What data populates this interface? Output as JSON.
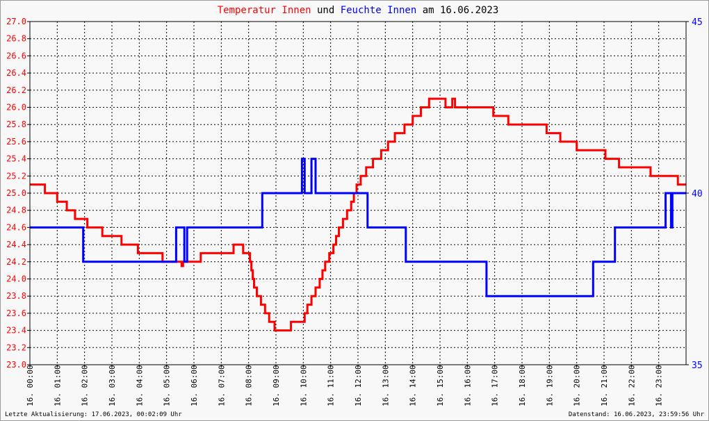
{
  "chart_data": {
    "type": "line",
    "title": {
      "parts": [
        {
          "text": "Temperatur Innen",
          "color": "#ff0000"
        },
        {
          "text": " und ",
          "color": "#000000"
        },
        {
          "text": "Feuchte Innen",
          "color": "#0000ff"
        },
        {
          "text": " am 16.06.2023",
          "color": "#000000"
        }
      ]
    },
    "x_domain": [
      0,
      24
    ],
    "x_ticks": [
      {
        "x": 0,
        "label": "16. 00:00"
      },
      {
        "x": 1,
        "label": "16. 01:00"
      },
      {
        "x": 2,
        "label": "16. 02:00"
      },
      {
        "x": 3,
        "label": "16. 03:00"
      },
      {
        "x": 4,
        "label": "16. 04:00"
      },
      {
        "x": 5,
        "label": "16. 05:00"
      },
      {
        "x": 6,
        "label": "16. 06:00"
      },
      {
        "x": 7,
        "label": "16. 07:00"
      },
      {
        "x": 8,
        "label": "16. 08:00"
      },
      {
        "x": 9,
        "label": "16. 09:00"
      },
      {
        "x": 10,
        "label": "16. 10:00"
      },
      {
        "x": 11,
        "label": "16. 11:00"
      },
      {
        "x": 12,
        "label": "16. 12:00"
      },
      {
        "x": 13,
        "label": "16. 13:00"
      },
      {
        "x": 14,
        "label": "16. 14:00"
      },
      {
        "x": 15,
        "label": "16. 15:00"
      },
      {
        "x": 16,
        "label": "16. 16:00"
      },
      {
        "x": 17,
        "label": "16. 17:00"
      },
      {
        "x": 18,
        "label": "16. 18:00"
      },
      {
        "x": 19,
        "label": "16. 19:00"
      },
      {
        "x": 20,
        "label": "16. 20:00"
      },
      {
        "x": 21,
        "label": "16. 21:00"
      },
      {
        "x": 22,
        "label": "16. 22:00"
      },
      {
        "x": 23,
        "label": "16. 23:00"
      }
    ],
    "y_left": {
      "range": [
        23.0,
        27.0
      ],
      "color": "#ff0000",
      "ticks": [
        "23.0",
        "23.2",
        "23.4",
        "23.6",
        "23.8",
        "24.0",
        "24.2",
        "24.4",
        "24.6",
        "24.8",
        "25.0",
        "25.2",
        "25.4",
        "25.6",
        "25.8",
        "26.0",
        "26.2",
        "26.4",
        "26.6",
        "26.8",
        "27.0"
      ]
    },
    "y_right": {
      "range": [
        35,
        45
      ],
      "color": "#0000ff",
      "ticks": [
        "35",
        "40",
        "45"
      ]
    },
    "grid": true,
    "series": [
      {
        "name": "Temperatur Innen",
        "axis": "left",
        "color": "#ff0000",
        "step": true,
        "points": [
          [
            0.0,
            25.1
          ],
          [
            0.5,
            25.1
          ],
          [
            0.55,
            25.0
          ],
          [
            0.95,
            25.0
          ],
          [
            1.0,
            24.9
          ],
          [
            1.3,
            24.9
          ],
          [
            1.35,
            24.8
          ],
          [
            1.6,
            24.8
          ],
          [
            1.65,
            24.7
          ],
          [
            2.05,
            24.7
          ],
          [
            2.1,
            24.6
          ],
          [
            2.6,
            24.6
          ],
          [
            2.65,
            24.5
          ],
          [
            3.3,
            24.5
          ],
          [
            3.35,
            24.4
          ],
          [
            3.9,
            24.4
          ],
          [
            3.95,
            24.3
          ],
          [
            4.8,
            24.3
          ],
          [
            4.85,
            24.2
          ],
          [
            5.5,
            24.2
          ],
          [
            5.55,
            24.15
          ],
          [
            5.6,
            24.2
          ],
          [
            6.2,
            24.2
          ],
          [
            6.25,
            24.3
          ],
          [
            7.4,
            24.3
          ],
          [
            7.45,
            24.4
          ],
          [
            7.75,
            24.4
          ],
          [
            7.8,
            24.3
          ],
          [
            8.0,
            24.3
          ],
          [
            8.05,
            24.2
          ],
          [
            8.1,
            24.1
          ],
          [
            8.15,
            24.0
          ],
          [
            8.2,
            23.9
          ],
          [
            8.3,
            23.8
          ],
          [
            8.45,
            23.7
          ],
          [
            8.6,
            23.6
          ],
          [
            8.75,
            23.5
          ],
          [
            8.95,
            23.4
          ],
          [
            9.5,
            23.4
          ],
          [
            9.55,
            23.5
          ],
          [
            10.0,
            23.5
          ],
          [
            10.05,
            23.6
          ],
          [
            10.15,
            23.7
          ],
          [
            10.3,
            23.8
          ],
          [
            10.45,
            23.9
          ],
          [
            10.6,
            24.0
          ],
          [
            10.7,
            24.1
          ],
          [
            10.8,
            24.2
          ],
          [
            10.95,
            24.3
          ],
          [
            11.1,
            24.4
          ],
          [
            11.2,
            24.5
          ],
          [
            11.3,
            24.6
          ],
          [
            11.45,
            24.7
          ],
          [
            11.6,
            24.8
          ],
          [
            11.75,
            24.9
          ],
          [
            11.85,
            25.0
          ],
          [
            11.95,
            25.1
          ],
          [
            12.1,
            25.2
          ],
          [
            12.3,
            25.3
          ],
          [
            12.55,
            25.4
          ],
          [
            12.85,
            25.5
          ],
          [
            13.1,
            25.6
          ],
          [
            13.35,
            25.7
          ],
          [
            13.7,
            25.8
          ],
          [
            14.0,
            25.9
          ],
          [
            14.3,
            26.0
          ],
          [
            14.6,
            26.1
          ],
          [
            15.1,
            26.1
          ],
          [
            15.2,
            26.0
          ],
          [
            15.45,
            26.1
          ],
          [
            15.55,
            26.0
          ],
          [
            16.9,
            26.0
          ],
          [
            16.95,
            25.9
          ],
          [
            17.45,
            25.9
          ],
          [
            17.5,
            25.8
          ],
          [
            18.85,
            25.8
          ],
          [
            18.9,
            25.7
          ],
          [
            19.35,
            25.7
          ],
          [
            19.4,
            25.6
          ],
          [
            19.95,
            25.6
          ],
          [
            20.0,
            25.5
          ],
          [
            21.0,
            25.5
          ],
          [
            21.05,
            25.4
          ],
          [
            21.5,
            25.4
          ],
          [
            21.55,
            25.3
          ],
          [
            22.65,
            25.3
          ],
          [
            22.7,
            25.2
          ],
          [
            23.65,
            25.2
          ],
          [
            23.7,
            25.1
          ],
          [
            24.0,
            25.1
          ]
        ]
      },
      {
        "name": "Feuchte Innen",
        "axis": "right",
        "color": "#0000ff",
        "step": true,
        "points": [
          [
            0.0,
            39.0
          ],
          [
            1.95,
            39.0
          ],
          [
            1.95,
            38.0
          ],
          [
            5.35,
            38.0
          ],
          [
            5.35,
            39.0
          ],
          [
            5.65,
            39.0
          ],
          [
            5.65,
            38.0
          ],
          [
            5.75,
            38.0
          ],
          [
            5.75,
            39.0
          ],
          [
            8.5,
            39.0
          ],
          [
            8.5,
            40.0
          ],
          [
            9.95,
            40.0
          ],
          [
            9.95,
            41.0
          ],
          [
            10.05,
            41.0
          ],
          [
            10.05,
            40.0
          ],
          [
            10.3,
            40.0
          ],
          [
            10.3,
            41.0
          ],
          [
            10.45,
            41.0
          ],
          [
            10.45,
            40.0
          ],
          [
            12.35,
            40.0
          ],
          [
            12.35,
            39.0
          ],
          [
            13.75,
            39.0
          ],
          [
            13.75,
            38.0
          ],
          [
            16.7,
            38.0
          ],
          [
            16.7,
            37.0
          ],
          [
            20.6,
            37.0
          ],
          [
            20.6,
            38.0
          ],
          [
            21.4,
            38.0
          ],
          [
            21.4,
            39.0
          ],
          [
            23.25,
            39.0
          ],
          [
            23.25,
            40.0
          ],
          [
            23.45,
            40.0
          ],
          [
            23.45,
            39.0
          ],
          [
            23.5,
            39.0
          ],
          [
            23.5,
            40.0
          ],
          [
            24.0,
            40.0
          ]
        ]
      }
    ],
    "footer_left": "Letzte Aktualisierung: 17.06.2023, 00:02:09 Uhr",
    "footer_right": "Datenstand: 16.06.2023, 23:59:56 Uhr"
  }
}
